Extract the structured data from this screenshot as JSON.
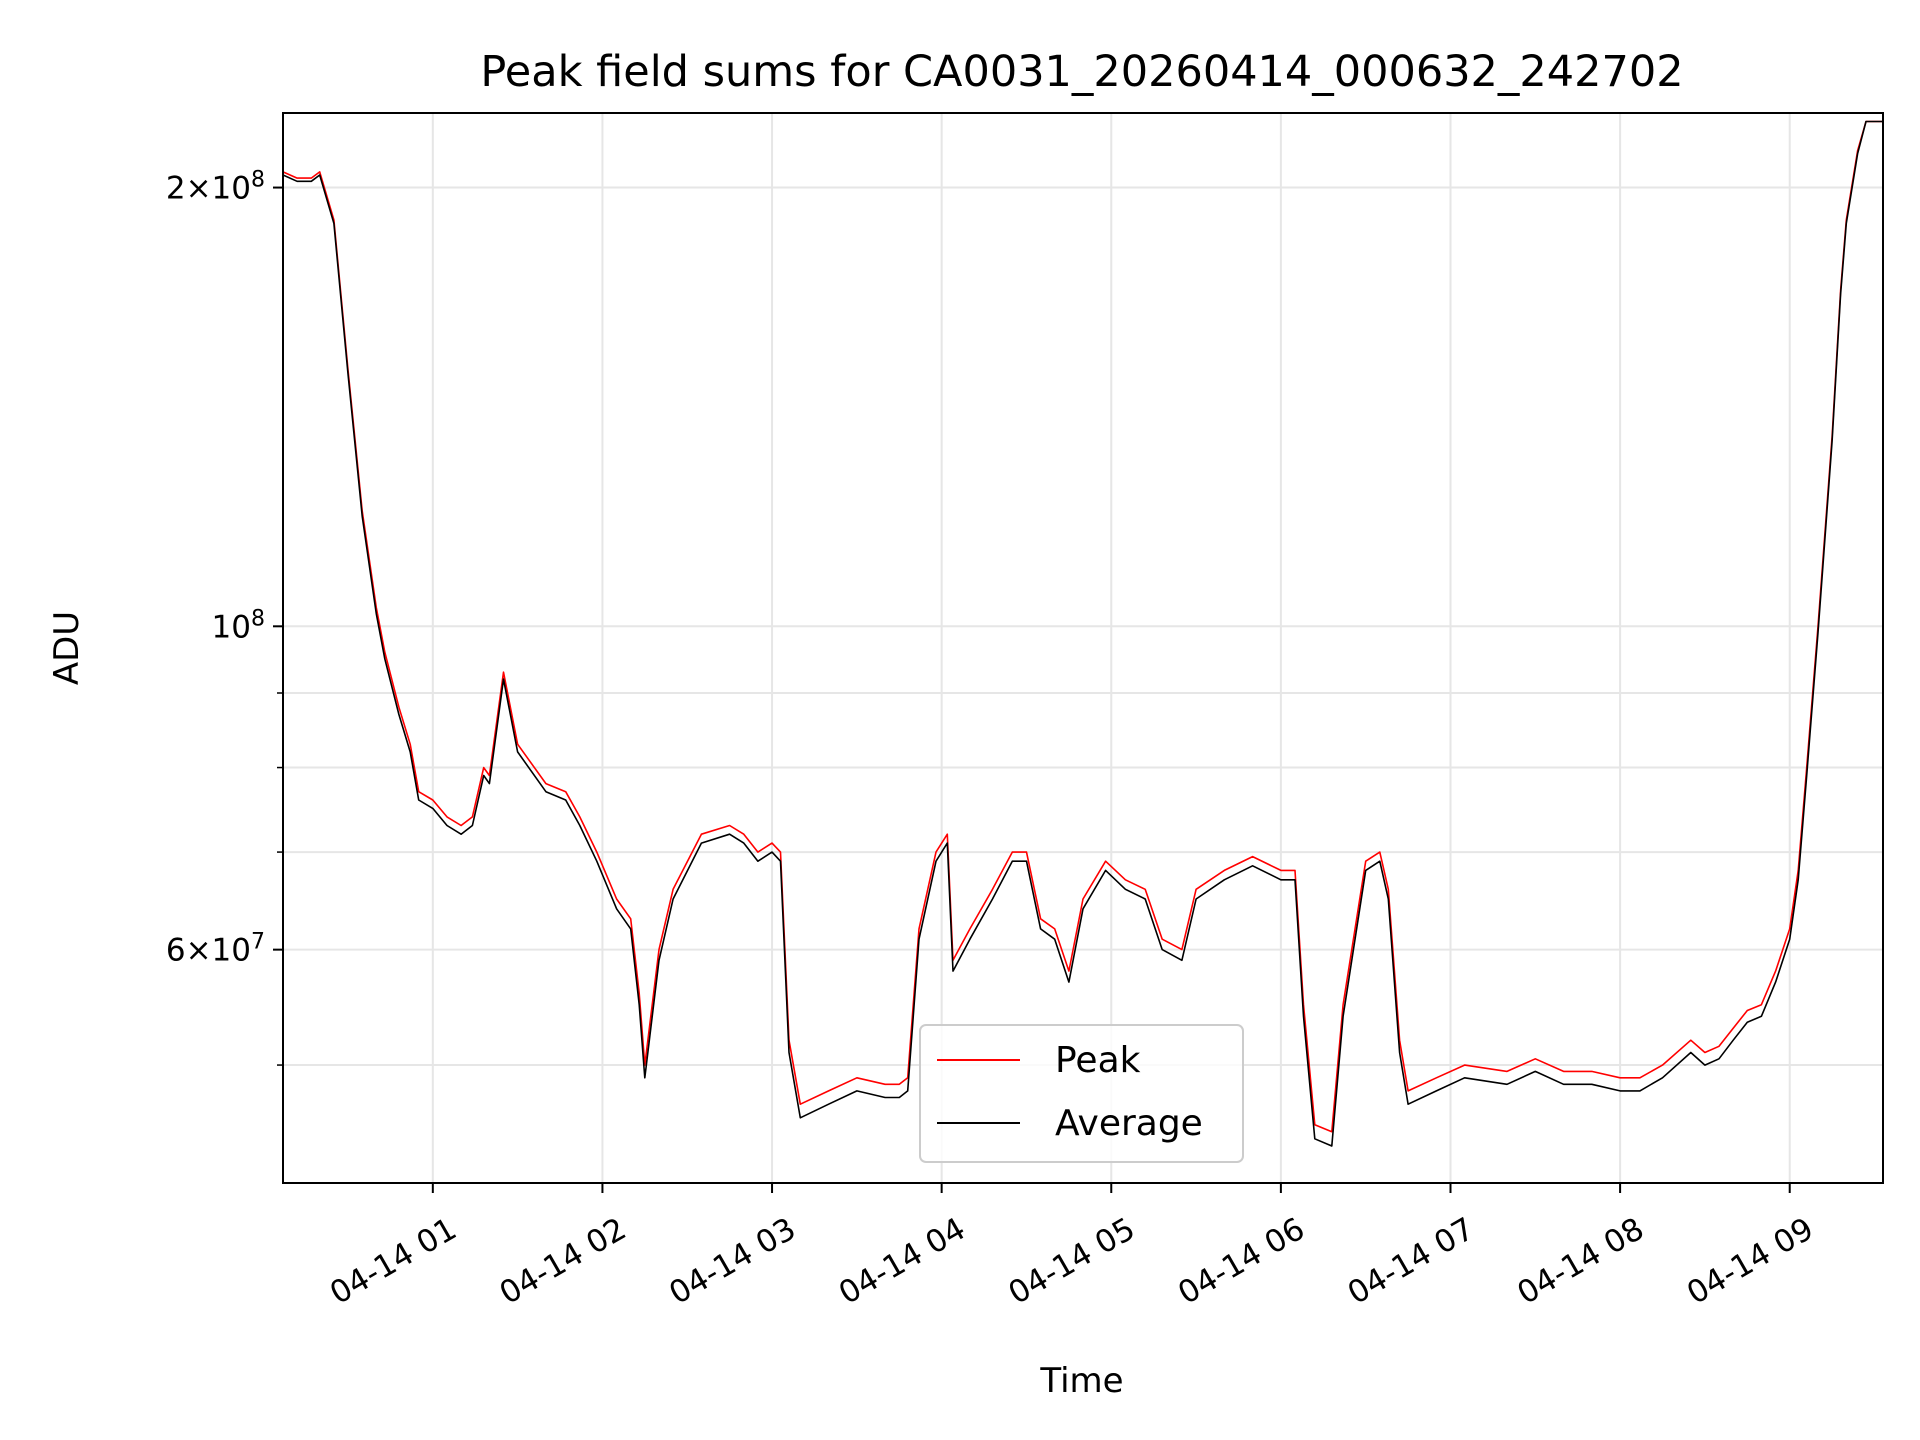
{
  "chart_data": {
    "type": "line",
    "title": "Peak field sums for CA0031_20260414_000632_242702",
    "xlabel": "Time",
    "ylabel": "ADU",
    "xlim": [
      "2026-04-14 00:07",
      "2026-04-14 09:33"
    ],
    "ylim": [
      41500000,
      225000000
    ],
    "yscale": "log",
    "grid": true,
    "legend_position": "bottom-center",
    "x_ticks": [
      {
        "value": "2026-04-14 01:00",
        "label": "04-14 01"
      },
      {
        "value": "2026-04-14 02:00",
        "label": "04-14 02"
      },
      {
        "value": "2026-04-14 03:00",
        "label": "04-14 03"
      },
      {
        "value": "2026-04-14 04:00",
        "label": "04-14 04"
      },
      {
        "value": "2026-04-14 05:00",
        "label": "04-14 05"
      },
      {
        "value": "2026-04-14 06:00",
        "label": "04-14 06"
      },
      {
        "value": "2026-04-14 07:00",
        "label": "04-14 07"
      },
      {
        "value": "2026-04-14 08:00",
        "label": "04-14 08"
      },
      {
        "value": "2026-04-14 09:00",
        "label": "04-14 09"
      }
    ],
    "y_major_ticks": [
      {
        "value": 200000000,
        "mantissa": "2",
        "exponent": "8"
      },
      {
        "value": 100000000,
        "mantissa": "",
        "exponent": "8"
      },
      {
        "value": 60000000,
        "mantissa": "6",
        "exponent": "7"
      }
    ],
    "y_minor_ticks": [
      50000000,
      70000000,
      80000000,
      90000000
    ],
    "series": [
      {
        "name": "Peak",
        "color": "#ff0000",
        "x": [
          "2026-04-14 00:07",
          "2026-04-14 00:12",
          "2026-04-14 00:17",
          "2026-04-14 00:20",
          "2026-04-14 00:25",
          "2026-04-14 00:30",
          "2026-04-14 00:35",
          "2026-04-14 00:40",
          "2026-04-14 00:43",
          "2026-04-14 00:48",
          "2026-04-14 00:52",
          "2026-04-14 00:55",
          "2026-04-14 01:00",
          "2026-04-14 01:05",
          "2026-04-14 01:10",
          "2026-04-14 01:14",
          "2026-04-14 01:18",
          "2026-04-14 01:20",
          "2026-04-14 01:25",
          "2026-04-14 01:30",
          "2026-04-14 01:40",
          "2026-04-14 01:47",
          "2026-04-14 01:52",
          "2026-04-14 01:58",
          "2026-04-14 02:05",
          "2026-04-14 02:10",
          "2026-04-14 02:13",
          "2026-04-14 02:15",
          "2026-04-14 02:20",
          "2026-04-14 02:25",
          "2026-04-14 02:35",
          "2026-04-14 02:45",
          "2026-04-14 02:50",
          "2026-04-14 02:55",
          "2026-04-14 03:00",
          "2026-04-14 03:03",
          "2026-04-14 03:06",
          "2026-04-14 03:10",
          "2026-04-14 03:20",
          "2026-04-14 03:30",
          "2026-04-14 03:40",
          "2026-04-14 03:45",
          "2026-04-14 03:48",
          "2026-04-14 03:52",
          "2026-04-14 03:58",
          "2026-04-14 04:00",
          "2026-04-14 04:02",
          "2026-04-14 04:04",
          "2026-04-14 04:10",
          "2026-04-14 04:18",
          "2026-04-14 04:25",
          "2026-04-14 04:30",
          "2026-04-14 04:35",
          "2026-04-14 04:40",
          "2026-04-14 04:45",
          "2026-04-14 04:50",
          "2026-04-14 04:58",
          "2026-04-14 05:05",
          "2026-04-14 05:12",
          "2026-04-14 05:18",
          "2026-04-14 05:25",
          "2026-04-14 05:30",
          "2026-04-14 05:40",
          "2026-04-14 05:50",
          "2026-04-14 06:00",
          "2026-04-14 06:05",
          "2026-04-14 06:08",
          "2026-04-14 06:12",
          "2026-04-14 06:18",
          "2026-04-14 06:22",
          "2026-04-14 06:30",
          "2026-04-14 06:35",
          "2026-04-14 06:38",
          "2026-04-14 06:42",
          "2026-04-14 06:45",
          "2026-04-14 06:55",
          "2026-04-14 07:05",
          "2026-04-14 07:20",
          "2026-04-14 07:30",
          "2026-04-14 07:40",
          "2026-04-14 07:50",
          "2026-04-14 08:00",
          "2026-04-14 08:07",
          "2026-04-14 08:15",
          "2026-04-14 08:25",
          "2026-04-14 08:30",
          "2026-04-14 08:35",
          "2026-04-14 08:40",
          "2026-04-14 08:45",
          "2026-04-14 08:50",
          "2026-04-14 08:55",
          "2026-04-14 09:00",
          "2026-04-14 09:03",
          "2026-04-14 09:06",
          "2026-04-14 09:10",
          "2026-04-14 09:15",
          "2026-04-14 09:18",
          "2026-04-14 09:20",
          "2026-04-14 09:24",
          "2026-04-14 09:27",
          "2026-04-14 09:33"
        ],
        "y": [
          205000000,
          203000000,
          203000000,
          205000000,
          190000000,
          150000000,
          120000000,
          103000000,
          96000000,
          88000000,
          83000000,
          77000000,
          76000000,
          74000000,
          73000000,
          74000000,
          80000000,
          79000000,
          93000000,
          83000000,
          78000000,
          77000000,
          74000000,
          70000000,
          65000000,
          63000000,
          56000000,
          50000000,
          60000000,
          66000000,
          72000000,
          73000000,
          72000000,
          70000000,
          71000000,
          70000000,
          52000000,
          47000000,
          48000000,
          49000000,
          48500000,
          48500000,
          49000000,
          62000000,
          70000000,
          71000000,
          72000000,
          59000000,
          62000000,
          66000000,
          70000000,
          70000000,
          63000000,
          62000000,
          58000000,
          65000000,
          69000000,
          67000000,
          66000000,
          61000000,
          60000000,
          66000000,
          68000000,
          69500000,
          68000000,
          68000000,
          55000000,
          45500000,
          45000000,
          55000000,
          69000000,
          70000000,
          66000000,
          52000000,
          48000000,
          49000000,
          50000000,
          49500000,
          50500000,
          49500000,
          49500000,
          49000000,
          49000000,
          50000000,
          52000000,
          51000000,
          51500000,
          53000000,
          54500000,
          55000000,
          58000000,
          62000000,
          68000000,
          80000000,
          100000000,
          135000000,
          170000000,
          190000000,
          212000000,
          222000000,
          222000000
        ]
      },
      {
        "name": "Average",
        "color": "#000000",
        "x": [
          "2026-04-14 00:07",
          "2026-04-14 00:12",
          "2026-04-14 00:17",
          "2026-04-14 00:20",
          "2026-04-14 00:25",
          "2026-04-14 00:30",
          "2026-04-14 00:35",
          "2026-04-14 00:40",
          "2026-04-14 00:43",
          "2026-04-14 00:48",
          "2026-04-14 00:52",
          "2026-04-14 00:55",
          "2026-04-14 01:00",
          "2026-04-14 01:05",
          "2026-04-14 01:10",
          "2026-04-14 01:14",
          "2026-04-14 01:18",
          "2026-04-14 01:20",
          "2026-04-14 01:25",
          "2026-04-14 01:30",
          "2026-04-14 01:40",
          "2026-04-14 01:47",
          "2026-04-14 01:52",
          "2026-04-14 01:58",
          "2026-04-14 02:05",
          "2026-04-14 02:10",
          "2026-04-14 02:13",
          "2026-04-14 02:15",
          "2026-04-14 02:20",
          "2026-04-14 02:25",
          "2026-04-14 02:35",
          "2026-04-14 02:45",
          "2026-04-14 02:50",
          "2026-04-14 02:55",
          "2026-04-14 03:00",
          "2026-04-14 03:03",
          "2026-04-14 03:06",
          "2026-04-14 03:10",
          "2026-04-14 03:20",
          "2026-04-14 03:30",
          "2026-04-14 03:40",
          "2026-04-14 03:45",
          "2026-04-14 03:48",
          "2026-04-14 03:52",
          "2026-04-14 03:58",
          "2026-04-14 04:00",
          "2026-04-14 04:02",
          "2026-04-14 04:04",
          "2026-04-14 04:10",
          "2026-04-14 04:18",
          "2026-04-14 04:25",
          "2026-04-14 04:30",
          "2026-04-14 04:35",
          "2026-04-14 04:40",
          "2026-04-14 04:45",
          "2026-04-14 04:50",
          "2026-04-14 04:58",
          "2026-04-14 05:05",
          "2026-04-14 05:12",
          "2026-04-14 05:18",
          "2026-04-14 05:25",
          "2026-04-14 05:30",
          "2026-04-14 05:40",
          "2026-04-14 05:50",
          "2026-04-14 06:00",
          "2026-04-14 06:05",
          "2026-04-14 06:08",
          "2026-04-14 06:12",
          "2026-04-14 06:18",
          "2026-04-14 06:22",
          "2026-04-14 06:30",
          "2026-04-14 06:35",
          "2026-04-14 06:38",
          "2026-04-14 06:42",
          "2026-04-14 06:45",
          "2026-04-14 06:55",
          "2026-04-14 07:05",
          "2026-04-14 07:20",
          "2026-04-14 07:30",
          "2026-04-14 07:40",
          "2026-04-14 07:50",
          "2026-04-14 08:00",
          "2026-04-14 08:07",
          "2026-04-14 08:15",
          "2026-04-14 08:25",
          "2026-04-14 08:30",
          "2026-04-14 08:35",
          "2026-04-14 08:40",
          "2026-04-14 08:45",
          "2026-04-14 08:50",
          "2026-04-14 08:55",
          "2026-04-14 09:00",
          "2026-04-14 09:03",
          "2026-04-14 09:06",
          "2026-04-14 09:10",
          "2026-04-14 09:15",
          "2026-04-14 09:18",
          "2026-04-14 09:20",
          "2026-04-14 09:24",
          "2026-04-14 09:27",
          "2026-04-14 09:33"
        ],
        "y": [
          204000000,
          202000000,
          202000000,
          204000000,
          189000000,
          149000000,
          119000000,
          102000000,
          95000000,
          87000000,
          82000000,
          76000000,
          75000000,
          73000000,
          72000000,
          73000000,
          79000000,
          78000000,
          92000000,
          82000000,
          77000000,
          76000000,
          73000000,
          69000000,
          64000000,
          62000000,
          55000000,
          49000000,
          59000000,
          65000000,
          71000000,
          72000000,
          71000000,
          69000000,
          70000000,
          69000000,
          51000000,
          46000000,
          47000000,
          48000000,
          47500000,
          47500000,
          48000000,
          61000000,
          69000000,
          70000000,
          71000000,
          58000000,
          61000000,
          65000000,
          69000000,
          69000000,
          62000000,
          61000000,
          57000000,
          64000000,
          68000000,
          66000000,
          65000000,
          60000000,
          59000000,
          65000000,
          67000000,
          68500000,
          67000000,
          67000000,
          54000000,
          44500000,
          44000000,
          54000000,
          68000000,
          69000000,
          65000000,
          51000000,
          47000000,
          48000000,
          49000000,
          48500000,
          49500000,
          48500000,
          48500000,
          48000000,
          48000000,
          49000000,
          51000000,
          50000000,
          50500000,
          52000000,
          53500000,
          54000000,
          57000000,
          61000000,
          67000000,
          79000000,
          99000000,
          134000000,
          169000000,
          189000000,
          211000000,
          222000000,
          222000000
        ]
      }
    ]
  }
}
